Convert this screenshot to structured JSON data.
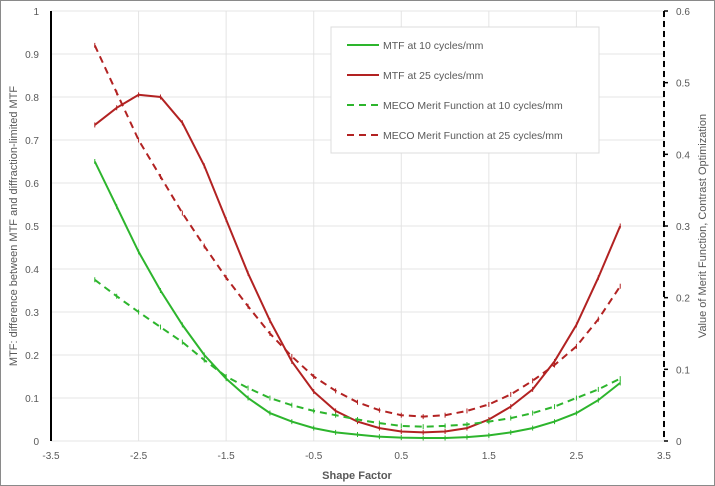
{
  "chart_data": {
    "type": "line",
    "title": "",
    "xlabel": "Shape Factor",
    "ylabel": "MTF: difference between MTF and diffraction-limited MTF",
    "y2label": "Value of Merit Function, Contrast Optimization",
    "xlim": [
      -3.5,
      3.5
    ],
    "ylim": [
      0,
      1
    ],
    "y2lim": [
      0,
      0.6
    ],
    "xticks": [
      "-3.5",
      "-2.5",
      "-1.5",
      "-0.5",
      "0.5",
      "1.5",
      "2.5",
      "3.5"
    ],
    "yticks": [
      "0",
      "0.1",
      "0.2",
      "0.3",
      "0.4",
      "0.5",
      "0.6",
      "0.7",
      "0.8",
      "0.9",
      "1"
    ],
    "y2ticks": [
      "0",
      "0.1",
      "0.2",
      "0.3",
      "0.4",
      "0.5",
      "0.6"
    ],
    "grid": true,
    "legend_position": "top-right",
    "x": [
      -3,
      -2.75,
      -2.5,
      -2.25,
      -2,
      -1.75,
      -1.5,
      -1.25,
      -1,
      -0.75,
      -0.5,
      -0.25,
      0,
      0.25,
      0.5,
      0.75,
      1,
      1.25,
      1.5,
      1.75,
      2,
      2.25,
      2.5,
      2.75,
      3
    ],
    "series": [
      {
        "name": "MTF at 10 cycles/mm",
        "axis": "left",
        "style": "solid",
        "color": "#2db52d",
        "values": [
          0.65,
          0.545,
          0.44,
          0.35,
          0.27,
          0.2,
          0.145,
          0.1,
          0.065,
          0.045,
          0.03,
          0.02,
          0.015,
          0.01,
          0.008,
          0.007,
          0.007,
          0.009,
          0.013,
          0.02,
          0.03,
          0.045,
          0.065,
          0.095,
          0.135
        ]
      },
      {
        "name": "MTF at 25 cycles/mm",
        "axis": "left",
        "style": "solid",
        "color": "#b22222",
        "values": [
          0.735,
          0.775,
          0.805,
          0.8,
          0.74,
          0.64,
          0.515,
          0.39,
          0.28,
          0.185,
          0.115,
          0.07,
          0.045,
          0.03,
          0.022,
          0.02,
          0.022,
          0.03,
          0.05,
          0.08,
          0.12,
          0.185,
          0.27,
          0.38,
          0.5
        ]
      },
      {
        "name": "MECO Merit Function at 10 cycles/mm",
        "axis": "right",
        "style": "dashed",
        "color": "#2db52d",
        "values": [
          0.225,
          0.202,
          0.18,
          0.159,
          0.138,
          0.113,
          0.09,
          0.074,
          0.06,
          0.05,
          0.042,
          0.036,
          0.03,
          0.025,
          0.021,
          0.02,
          0.021,
          0.023,
          0.027,
          0.032,
          0.039,
          0.048,
          0.06,
          0.072,
          0.087
        ]
      },
      {
        "name": "MECO Merit Function at 25 cycles/mm",
        "axis": "right",
        "style": "dashed",
        "color": "#b22222",
        "values": [
          0.552,
          0.486,
          0.42,
          0.369,
          0.318,
          0.272,
          0.228,
          0.188,
          0.15,
          0.118,
          0.09,
          0.07,
          0.054,
          0.043,
          0.036,
          0.034,
          0.036,
          0.042,
          0.051,
          0.065,
          0.084,
          0.106,
          0.132,
          0.17,
          0.216
        ]
      }
    ]
  }
}
